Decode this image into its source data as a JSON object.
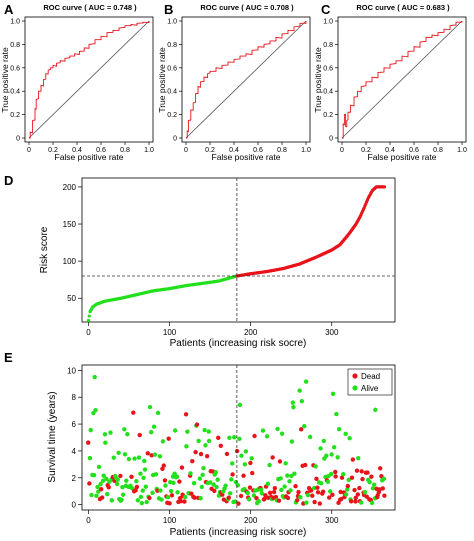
{
  "chart_data": [
    {
      "panel": "A",
      "type": "line",
      "title": "ROC curve ( AUC =  0.748 )",
      "xlabel": "False positive rate",
      "ylabel": "True positive rate",
      "xlim": [
        0,
        1
      ],
      "ylim": [
        0,
        1
      ],
      "xticks": [
        "0",
        "0.2",
        "0.4",
        "0.6",
        "0.8",
        "1.0"
      ],
      "yticks": [
        "0",
        "0.2",
        "0.4",
        "0.6",
        "0.8",
        "1.0"
      ],
      "color": "#e8141b",
      "x": [
        0,
        0.01,
        0.03,
        0.05,
        0.06,
        0.08,
        0.1,
        0.12,
        0.14,
        0.16,
        0.18,
        0.2,
        0.23,
        0.26,
        0.3,
        0.34,
        0.38,
        0.42,
        0.46,
        0.5,
        0.55,
        0.6,
        0.65,
        0.7,
        0.75,
        0.8,
        0.85,
        0.9,
        0.95,
        1.0
      ],
      "y": [
        0,
        0.05,
        0.15,
        0.25,
        0.33,
        0.4,
        0.45,
        0.5,
        0.55,
        0.58,
        0.6,
        0.62,
        0.64,
        0.66,
        0.68,
        0.7,
        0.72,
        0.74,
        0.77,
        0.8,
        0.84,
        0.87,
        0.9,
        0.92,
        0.94,
        0.96,
        0.97,
        0.98,
        0.99,
        1.0
      ],
      "diagonal": true
    },
    {
      "panel": "B",
      "type": "line",
      "title": "ROC curve ( AUC =  0.708 )",
      "xlabel": "False positive rate",
      "ylabel": "True positive rate",
      "xlim": [
        0,
        1
      ],
      "ylim": [
        0,
        1
      ],
      "xticks": [
        "0",
        "0.2",
        "0.4",
        "0.6",
        "0.8",
        "1.0"
      ],
      "yticks": [
        "0",
        "0.2",
        "0.4",
        "0.6",
        "0.8",
        "1.0"
      ],
      "color": "#e8141b",
      "x": [
        0,
        0.01,
        0.02,
        0.04,
        0.06,
        0.08,
        0.1,
        0.12,
        0.15,
        0.18,
        0.2,
        0.25,
        0.3,
        0.35,
        0.4,
        0.45,
        0.5,
        0.55,
        0.6,
        0.65,
        0.7,
        0.75,
        0.8,
        0.85,
        0.9,
        0.95,
        1.0
      ],
      "y": [
        0,
        0.06,
        0.15,
        0.24,
        0.3,
        0.38,
        0.44,
        0.48,
        0.52,
        0.55,
        0.57,
        0.6,
        0.62,
        0.65,
        0.67,
        0.7,
        0.72,
        0.75,
        0.78,
        0.8,
        0.83,
        0.86,
        0.89,
        0.92,
        0.95,
        0.98,
        1.0
      ],
      "diagonal": true
    },
    {
      "panel": "C",
      "type": "line",
      "title": "ROC curve ( AUC =  0.683 )",
      "xlabel": "False positive rate",
      "ylabel": "True positive rate",
      "xlim": [
        0,
        1
      ],
      "ylim": [
        0,
        1
      ],
      "xticks": [
        "0",
        "0.2",
        "0.4",
        "0.6",
        "0.8",
        "1.0"
      ],
      "yticks": [
        "0",
        "0.2",
        "0.4",
        "0.6",
        "0.8",
        "1.0"
      ],
      "color": "#e8141b",
      "x": [
        0,
        0.01,
        0.02,
        0.03,
        0.04,
        0.05,
        0.07,
        0.1,
        0.13,
        0.16,
        0.2,
        0.25,
        0.3,
        0.35,
        0.4,
        0.45,
        0.5,
        0.55,
        0.6,
        0.65,
        0.7,
        0.75,
        0.8,
        0.85,
        0.9,
        0.95,
        1.0
      ],
      "y": [
        0,
        0.12,
        0.2,
        0.1,
        0.15,
        0.22,
        0.28,
        0.35,
        0.4,
        0.44,
        0.48,
        0.52,
        0.56,
        0.6,
        0.63,
        0.66,
        0.7,
        0.74,
        0.78,
        0.82,
        0.86,
        0.88,
        0.9,
        0.93,
        0.96,
        0.99,
        1.0
      ],
      "diagonal": true
    },
    {
      "panel": "D",
      "type": "scatter",
      "xlabel": "Patients (increasing risk socre)",
      "ylabel": "Risk score",
      "xlim": [
        -8,
        378
      ],
      "ylim": [
        18,
        212
      ],
      "xticks": [
        0,
        100,
        200,
        300
      ],
      "yticks": [
        50,
        100,
        150,
        200
      ],
      "cutoff_patient": 183,
      "cutoff_score": 80,
      "n_patients": 366,
      "high_risk_color": "#e8141b",
      "low_risk_color": "#22e01c",
      "curve_x": [
        0,
        2,
        5,
        10,
        20,
        40,
        60,
        80,
        100,
        120,
        140,
        160,
        183,
        200,
        220,
        240,
        260,
        280,
        300,
        310,
        320,
        330,
        335,
        340,
        345,
        350,
        355,
        365
      ],
      "curve_y": [
        20,
        32,
        38,
        42,
        46,
        50,
        55,
        60,
        63,
        67,
        70,
        73,
        80,
        83,
        86,
        90,
        96,
        105,
        115,
        122,
        135,
        150,
        160,
        172,
        185,
        195,
        200,
        200
      ]
    },
    {
      "panel": "E",
      "type": "scatter",
      "xlabel": "Patients (increasing risk socre)",
      "ylabel": "Survival time (years)",
      "xlim": [
        -8,
        378
      ],
      "ylim": [
        -0.4,
        10.4
      ],
      "xticks": [
        0,
        100,
        200,
        300
      ],
      "yticks": [
        0,
        2,
        4,
        6,
        8,
        10
      ],
      "cutoff_patient": 183,
      "legend_position": "top-right",
      "series": [
        {
          "name": "Dead",
          "color": "#e8141b"
        },
        {
          "name": "Alive",
          "color": "#22e01c"
        }
      ],
      "n_patients": 366
    }
  ]
}
